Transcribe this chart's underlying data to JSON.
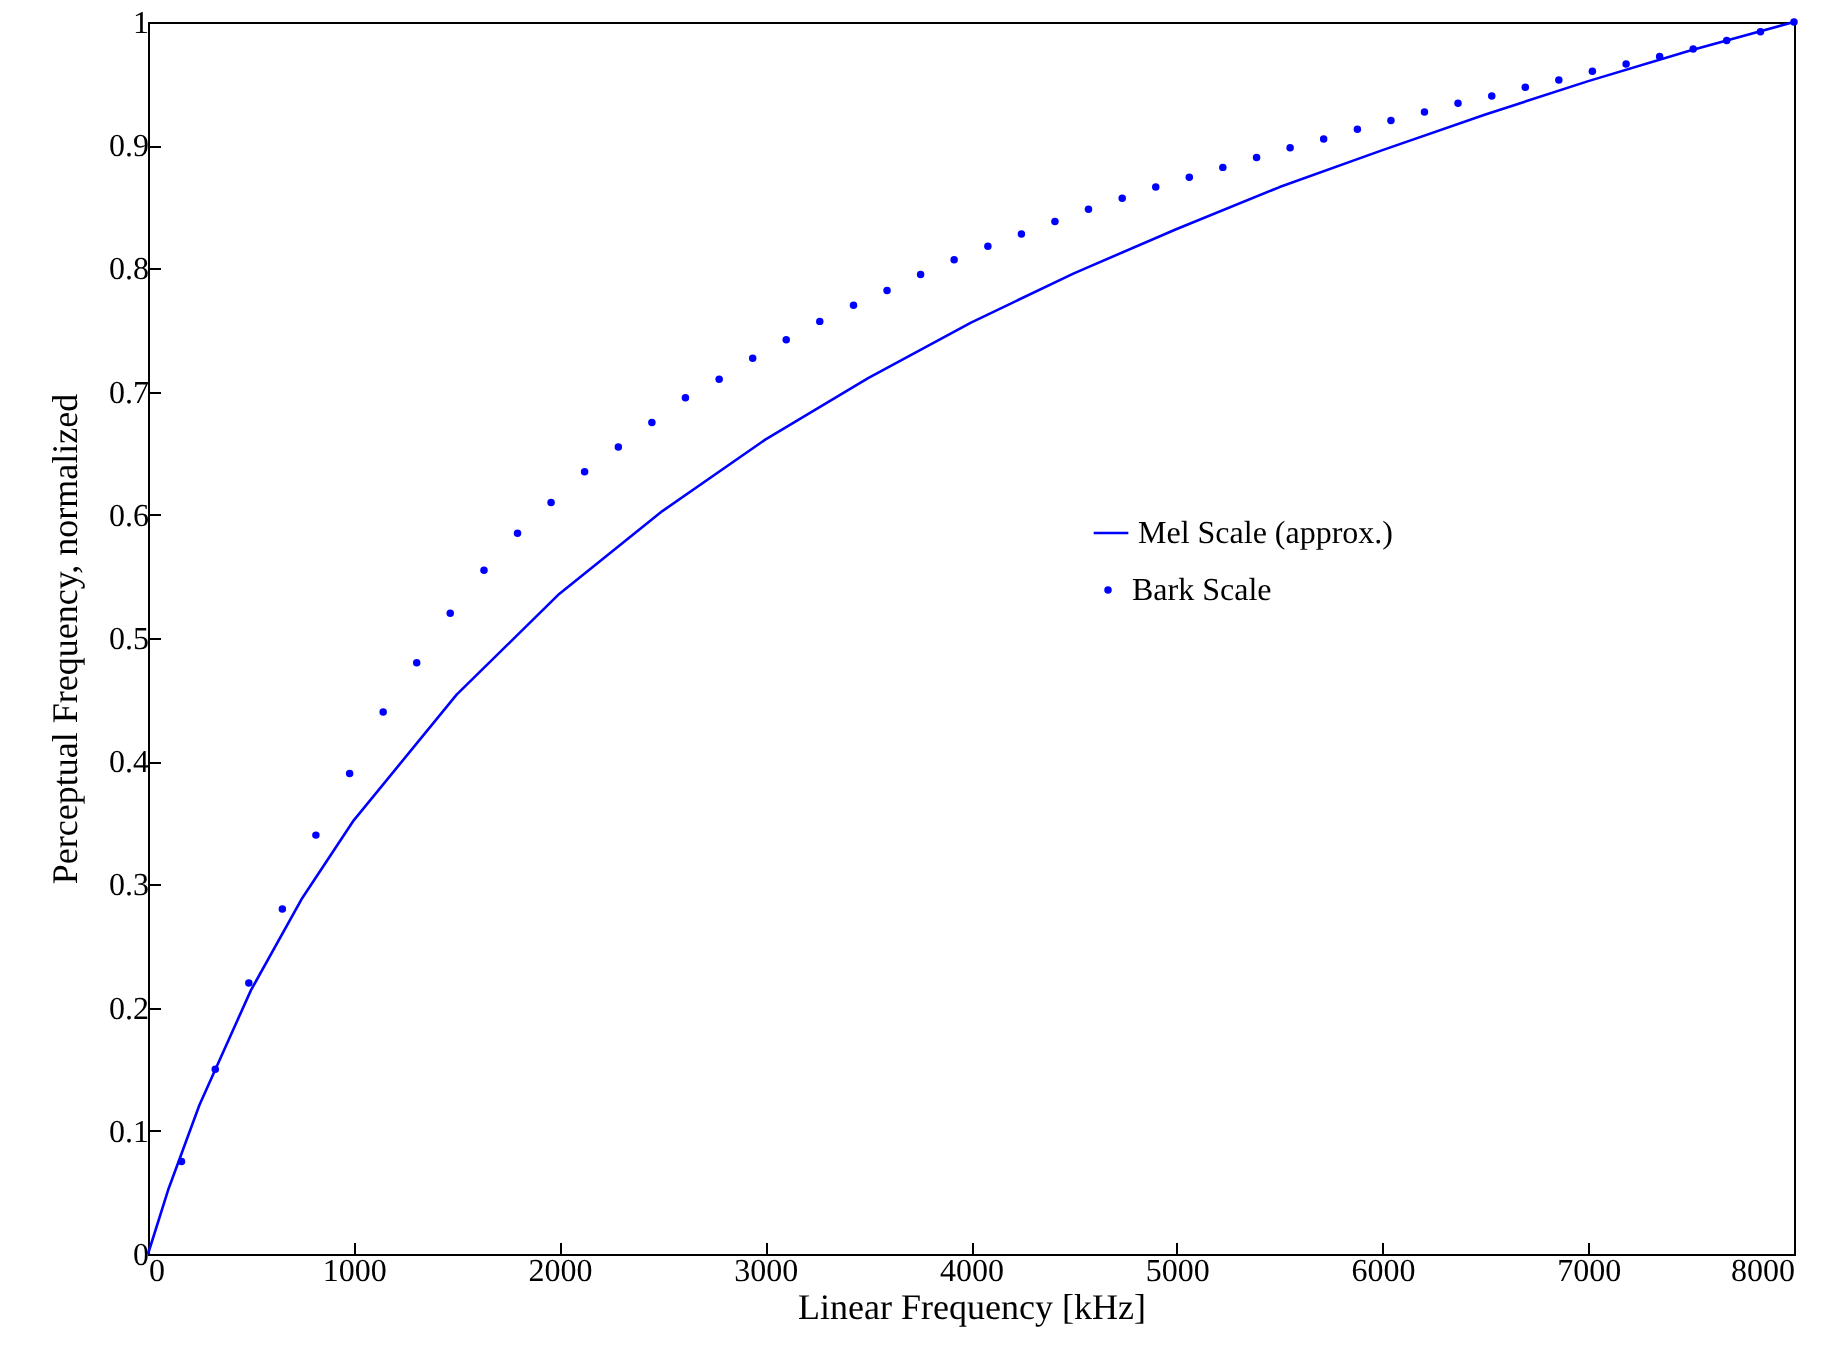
{
  "chart_data": {
    "type": "line",
    "xlabel": "Linear Frequency [kHz]",
    "ylabel": "Perceptual Frequency, normalized",
    "xlim": [
      0,
      8000
    ],
    "ylim": [
      0,
      1
    ],
    "xticks": [
      0,
      1000,
      2000,
      3000,
      4000,
      5000,
      6000,
      7000,
      8000
    ],
    "yticks": [
      0,
      0.1,
      0.2,
      0.3,
      0.4,
      0.5,
      0.6,
      0.7,
      0.8,
      0.9,
      1
    ],
    "legend": "right",
    "grid": false,
    "series": [
      {
        "name": "Mel Scale (approx.)",
        "color": "#0000ff",
        "line_style": "solid",
        "x": [
          0,
          100,
          250,
          500,
          750,
          1000,
          1500,
          2000,
          2500,
          3000,
          3500,
          4000,
          4500,
          5000,
          5500,
          6000,
          6500,
          7000,
          7500,
          8000
        ],
        "values": [
          0,
          0.053,
          0.121,
          0.214,
          0.289,
          0.352,
          0.454,
          0.536,
          0.603,
          0.661,
          0.711,
          0.756,
          0.796,
          0.832,
          0.866,
          0.896,
          0.925,
          0.952,
          0.977,
          1
        ]
      },
      {
        "name": "Bark Scale",
        "type": "scatter",
        "color": "#0000ff",
        "marker": "circle",
        "x": [
          163,
          327,
          490,
          653,
          816,
          980,
          1143,
          1306,
          1469,
          1633,
          1796,
          1959,
          2122,
          2286,
          2449,
          2612,
          2776,
          2939,
          3102,
          3265,
          3429,
          3592,
          3755,
          3918,
          4082,
          4245,
          4408,
          4571,
          4735,
          4898,
          5061,
          5224,
          5388,
          5551,
          5714,
          5878,
          6041,
          6204,
          6367,
          6531,
          6694,
          6857,
          7020,
          7184,
          7347,
          7510,
          7673,
          7837,
          8000
        ],
        "values": [
          0.075,
          0.15,
          0.22,
          0.28,
          0.34,
          0.39,
          0.44,
          0.48,
          0.52,
          0.555,
          0.585,
          0.61,
          0.635,
          0.655,
          0.675,
          0.695,
          0.71,
          0.727,
          0.742,
          0.757,
          0.77,
          0.782,
          0.795,
          0.807,
          0.818,
          0.828,
          0.838,
          0.848,
          0.857,
          0.866,
          0.874,
          0.882,
          0.89,
          0.898,
          0.905,
          0.913,
          0.92,
          0.927,
          0.934,
          0.94,
          0.947,
          0.953,
          0.96,
          0.966,
          0.972,
          0.978,
          0.985,
          0.992,
          1
        ]
      }
    ]
  }
}
